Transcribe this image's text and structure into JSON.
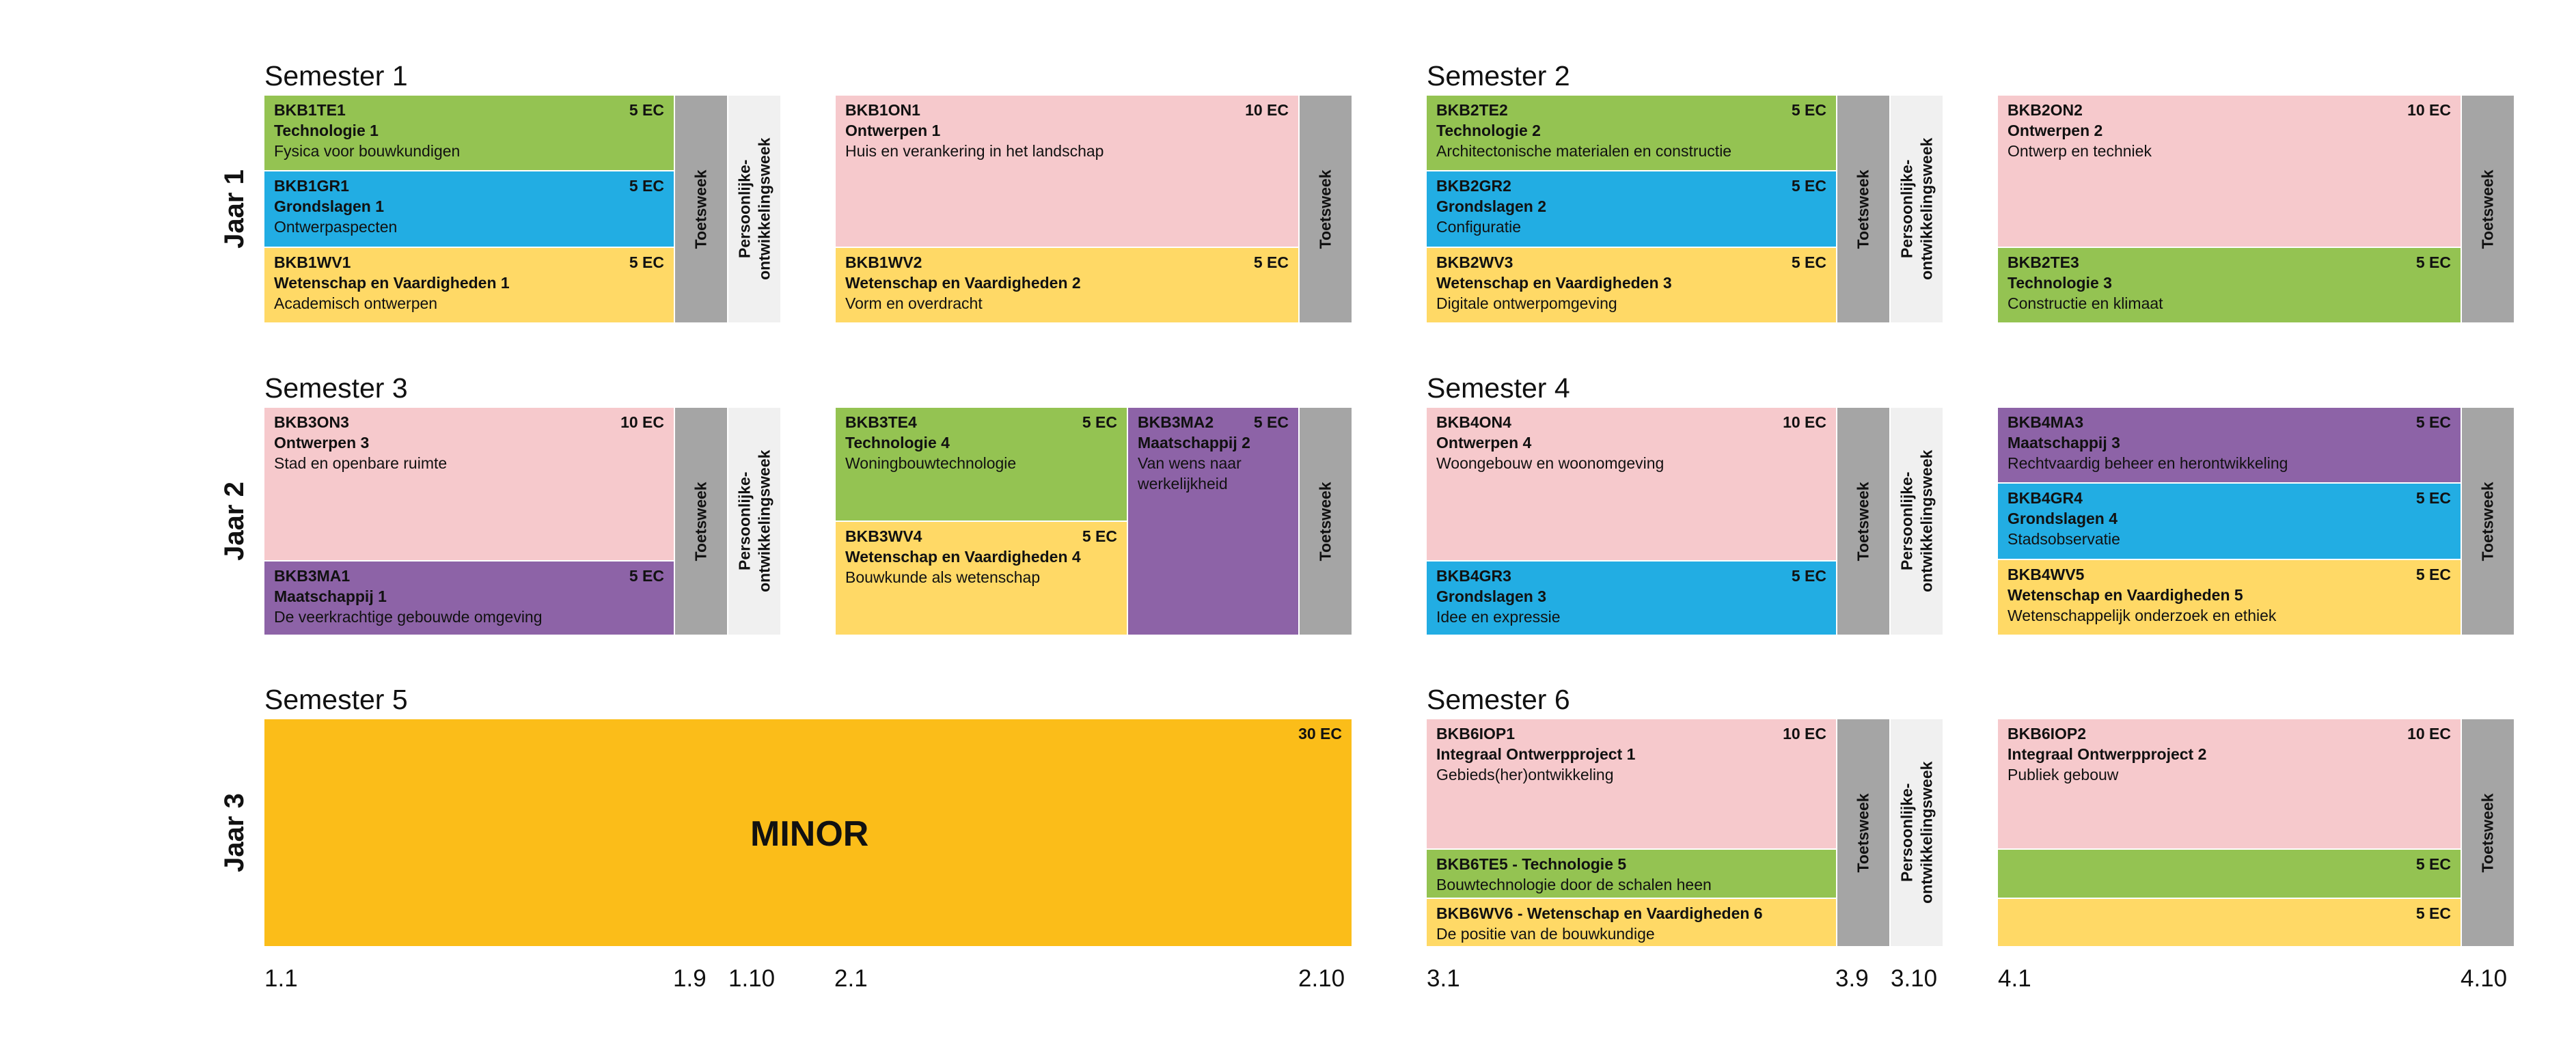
{
  "semesters": {
    "s1": "Semester 1",
    "s2": "Semester 2",
    "s3": "Semester 3",
    "s4": "Semester 4",
    "s5": "Semester 5",
    "s6": "Semester 6"
  },
  "years": {
    "y1": "Jaar 1",
    "y2": "Jaar 2",
    "y3": "Jaar 3"
  },
  "labels": {
    "toets": "Toetsweek",
    "po_line1": "Persoonlijke-",
    "po_line2": "ontwikkelingsweek",
    "minor": "MINOR"
  },
  "courses": {
    "te1": {
      "code": "BKB1TE1",
      "name": "Technologie 1",
      "desc": "Fysica voor bouwkundigen",
      "ec": "5 EC"
    },
    "gr1": {
      "code": "BKB1GR1",
      "name": "Grondslagen 1",
      "desc": "Ontwerpaspecten",
      "ec": "5 EC"
    },
    "wv1": {
      "code": "BKB1WV1",
      "name": "Wetenschap en Vaardigheden 1",
      "desc": "Academisch ontwerpen",
      "ec": "5 EC"
    },
    "on1": {
      "code": "BKB1ON1",
      "name": "Ontwerpen 1",
      "desc": "Huis en verankering in het landschap",
      "ec": "10 EC"
    },
    "wv2": {
      "code": "BKB1WV2",
      "name": "Wetenschap en Vaardigheden 2",
      "desc": "Vorm en overdracht",
      "ec": "5 EC"
    },
    "te2": {
      "code": "BKB2TE2",
      "name": "Technologie 2",
      "desc": "Architectonische materialen en constructie",
      "ec": "5 EC"
    },
    "gr2": {
      "code": "BKB2GR2",
      "name": "Grondslagen 2",
      "desc": "Configuratie",
      "ec": "5 EC"
    },
    "wv3": {
      "code": "BKB2WV3",
      "name": "Wetenschap en Vaardigheden 3",
      "desc": "Digitale ontwerpomgeving",
      "ec": "5 EC"
    },
    "on2": {
      "code": "BKB2ON2",
      "name": "Ontwerpen 2",
      "desc": "Ontwerp en techniek",
      "ec": "10 EC"
    },
    "te3": {
      "code": "BKB2TE3",
      "name": "Technologie 3",
      "desc": "Constructie en klimaat",
      "ec": "5 EC"
    },
    "on3": {
      "code": "BKB3ON3",
      "name": "Ontwerpen 3",
      "desc": "Stad en openbare ruimte",
      "ec": "10 EC"
    },
    "ma1": {
      "code": "BKB3MA1",
      "name": "Maatschappij 1",
      "desc": "De veerkrachtige gebouwde omgeving",
      "ec": "5 EC"
    },
    "te4": {
      "code": "BKB3TE4",
      "name": "Technologie 4",
      "desc": "Woningbouwtechnologie",
      "ec": "5 EC"
    },
    "wv4": {
      "code": "BKB3WV4",
      "name": "Wetenschap en Vaardigheden 4",
      "desc": "Bouwkunde als wetenschap",
      "ec": "5 EC"
    },
    "ma2": {
      "code": "BKB3MA2",
      "name": "Maatschappij 2",
      "desc": "Van wens naar werkelijkheid",
      "ec": "5 EC"
    },
    "on4": {
      "code": "BKB4ON4",
      "name": "Ontwerpen 4",
      "desc": "Woongebouw en woonomgeving",
      "ec": "10 EC"
    },
    "gr3": {
      "code": "BKB4GR3",
      "name": "Grondslagen 3",
      "desc": "Idee en expressie",
      "ec": "5 EC"
    },
    "ma3": {
      "code": "BKB4MA3",
      "name": "Maatschappij 3",
      "desc": "Rechtvaardig beheer en herontwikkeling",
      "ec": "5 EC"
    },
    "gr4": {
      "code": "BKB4GR4",
      "name": "Grondslagen 4",
      "desc": "Stadsobservatie",
      "ec": "5 EC"
    },
    "wv5": {
      "code": "BKB4WV5",
      "name": "Wetenschap en Vaardigheden 5",
      "desc": "Wetenschappelijk onderzoek en ethiek",
      "ec": "5 EC"
    },
    "minor": {
      "ec": "30 EC"
    },
    "iop1": {
      "code": "BKB6IOP1",
      "name": "Integraal Ontwerpproject 1",
      "desc": "Gebieds(her)ontwikkeling",
      "ec": "10 EC"
    },
    "te5": {
      "title": "BKB6TE5 - Technologie 5",
      "desc": "Bouwtechnologie door de schalen heen"
    },
    "wv6": {
      "title": "BKB6WV6 - Wetenschap en Vaardigheden 6",
      "desc": "De positie van de bouwkundige"
    },
    "iop2": {
      "code": "BKB6IOP2",
      "name": "Integraal Ontwerpproject 2",
      "desc": "Publiek gebouw",
      "ec": "10 EC"
    },
    "s4green": {
      "ec": "5 EC"
    },
    "s4yellow": {
      "ec": "5 EC"
    }
  },
  "ticks": [
    "1.1",
    "1.9",
    "1.10",
    "2.1",
    "2.10",
    "3.1",
    "3.9",
    "3.10",
    "4.1",
    "4.10"
  ],
  "colors": {
    "technologie": "#94c352",
    "grondslagen": "#22ade3",
    "wetenschap": "#ffd966",
    "ontwerpen": "#f6c9cc",
    "maatschappij": "#8d63a7",
    "toetsweek": "#a5a5a5",
    "ontwikkelingsweek": "#f0f0f0",
    "minor": "#fbbd19"
  }
}
